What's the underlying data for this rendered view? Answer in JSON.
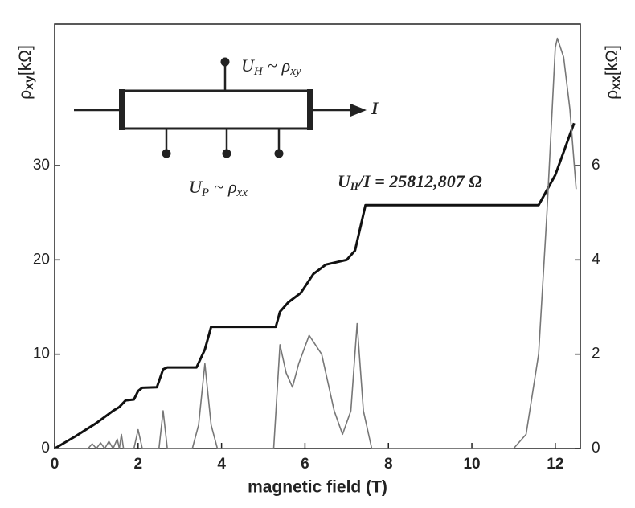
{
  "chart_data": {
    "type": "line",
    "xlabel": "magnetic field (T)",
    "ylabel": [
      "ρ",
      "xy",
      "[kΩ]"
    ],
    "y2label": [
      "ρ",
      "xx",
      "[kΩ]"
    ],
    "xlim": [
      0,
      12.6
    ],
    "ylim": [
      0,
      45
    ],
    "y2lim": [
      0,
      9
    ],
    "xticks": [
      0,
      2,
      4,
      6,
      8,
      10,
      12
    ],
    "yticks": [
      0,
      10,
      20,
      30
    ],
    "y2ticks": [
      0,
      2,
      4,
      6
    ],
    "grid": false,
    "series": [
      {
        "color": "#111111",
        "axis": "y",
        "x": [
          0,
          0.5,
          1.0,
          1.4,
          1.55,
          1.7,
          1.9,
          2.0,
          2.1,
          2.45,
          2.6,
          2.7,
          3.4,
          3.6,
          3.75,
          5.3,
          5.4,
          5.6,
          5.9,
          6.2,
          6.5,
          7.0,
          7.2,
          7.45,
          11.6,
          12.0,
          12.45
        ],
        "values": [
          0,
          1.3,
          2.7,
          4.0,
          4.4,
          5.1,
          5.2,
          6.1,
          6.45,
          6.5,
          8.4,
          8.6,
          8.6,
          10.5,
          12.9,
          12.9,
          14.5,
          15.5,
          16.5,
          18.5,
          19.5,
          20,
          21,
          25.8,
          25.8,
          29,
          34.5
        ]
      },
      {
        "color": "#777777",
        "axis": "y2",
        "x": [
          0,
          0.8,
          0.9,
          1.0,
          1.1,
          1.2,
          1.3,
          1.4,
          1.5,
          1.55,
          1.6,
          1.65,
          1.9,
          2.0,
          2.1,
          2.5,
          2.6,
          2.7,
          3.3,
          3.45,
          3.6,
          3.75,
          3.9,
          5.25,
          5.4,
          5.55,
          5.7,
          5.85,
          6.1,
          6.4,
          6.7,
          6.9,
          7.1,
          7.25,
          7.4,
          7.6,
          11.0,
          11.3,
          11.6,
          11.8,
          12.0,
          12.05,
          12.2,
          12.35,
          12.5
        ],
        "values": [
          0,
          0,
          0.1,
          0,
          0.12,
          0,
          0.15,
          0,
          0.2,
          0,
          0.3,
          0,
          0,
          0.4,
          0,
          0,
          0.8,
          0,
          0,
          0.5,
          1.8,
          0.5,
          0,
          0,
          2.2,
          1.6,
          1.3,
          1.8,
          2.4,
          2.0,
          0.8,
          0.3,
          0.8,
          2.65,
          0.8,
          0,
          0,
          0.3,
          2,
          5,
          8.5,
          8.7,
          8.3,
          7.2,
          5.5
        ]
      }
    ],
    "annotations": [
      [
        "U",
        "H",
        "~",
        "ρ",
        "xy"
      ],
      [
        "I"
      ],
      [
        "U",
        "P",
        "~",
        "ρ",
        "xx"
      ],
      [
        "U",
        "H",
        "/I = 25812,807 Ω"
      ]
    ]
  }
}
